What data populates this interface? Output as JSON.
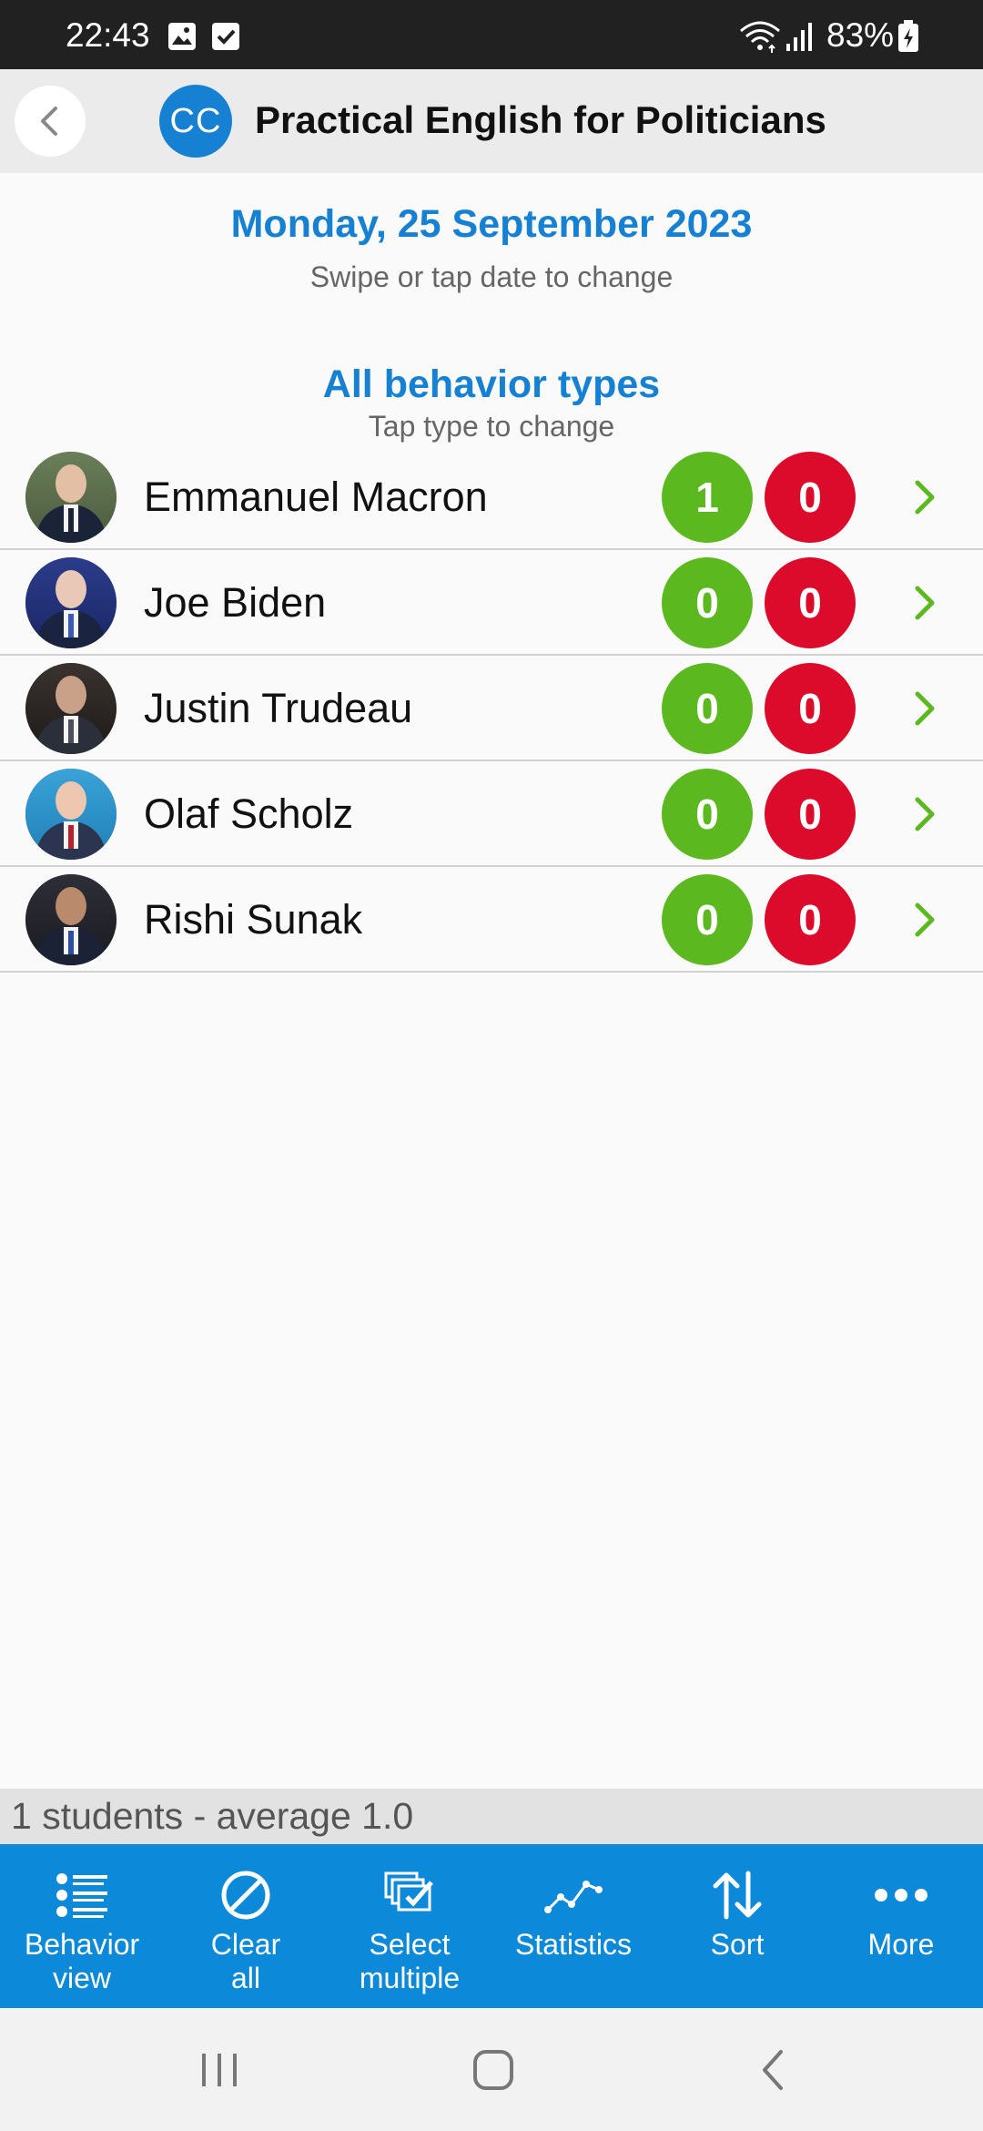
{
  "status_bar": {
    "time": "22:43",
    "battery": "83%",
    "icons": [
      "gallery-icon",
      "checkbox-icon",
      "wifi-icon",
      "signal-icon",
      "battery-icon"
    ]
  },
  "app_bar": {
    "logo_text": "CC",
    "title": "Practical English for Politicians"
  },
  "date_header": {
    "date": "Monday, 25 September 2023",
    "hint": "Swipe or tap date to change"
  },
  "behavior_filter": {
    "label": "All behavior types",
    "hint": "Tap type to change"
  },
  "students": [
    {
      "name": "Emmanuel Macron",
      "positive": "1",
      "negative": "0"
    },
    {
      "name": "Joe Biden",
      "positive": "0",
      "negative": "0"
    },
    {
      "name": "Justin Trudeau",
      "positive": "0",
      "negative": "0"
    },
    {
      "name": "Olaf Scholz",
      "positive": "0",
      "negative": "0"
    },
    {
      "name": "Rishi Sunak",
      "positive": "0",
      "negative": "0"
    }
  ],
  "summary": "1 students - average 1.0",
  "toolbar": {
    "behavior_view": "Behavior\nview",
    "clear_all": "Clear\nall",
    "select_multiple": "Select\nmultiple",
    "statistics": "Statistics",
    "sort": "Sort",
    "more": "More"
  },
  "colors": {
    "accent": "#1681d2",
    "toolbar": "#0c89d8",
    "positive": "#5bb91f",
    "negative": "#dc0b2b"
  }
}
